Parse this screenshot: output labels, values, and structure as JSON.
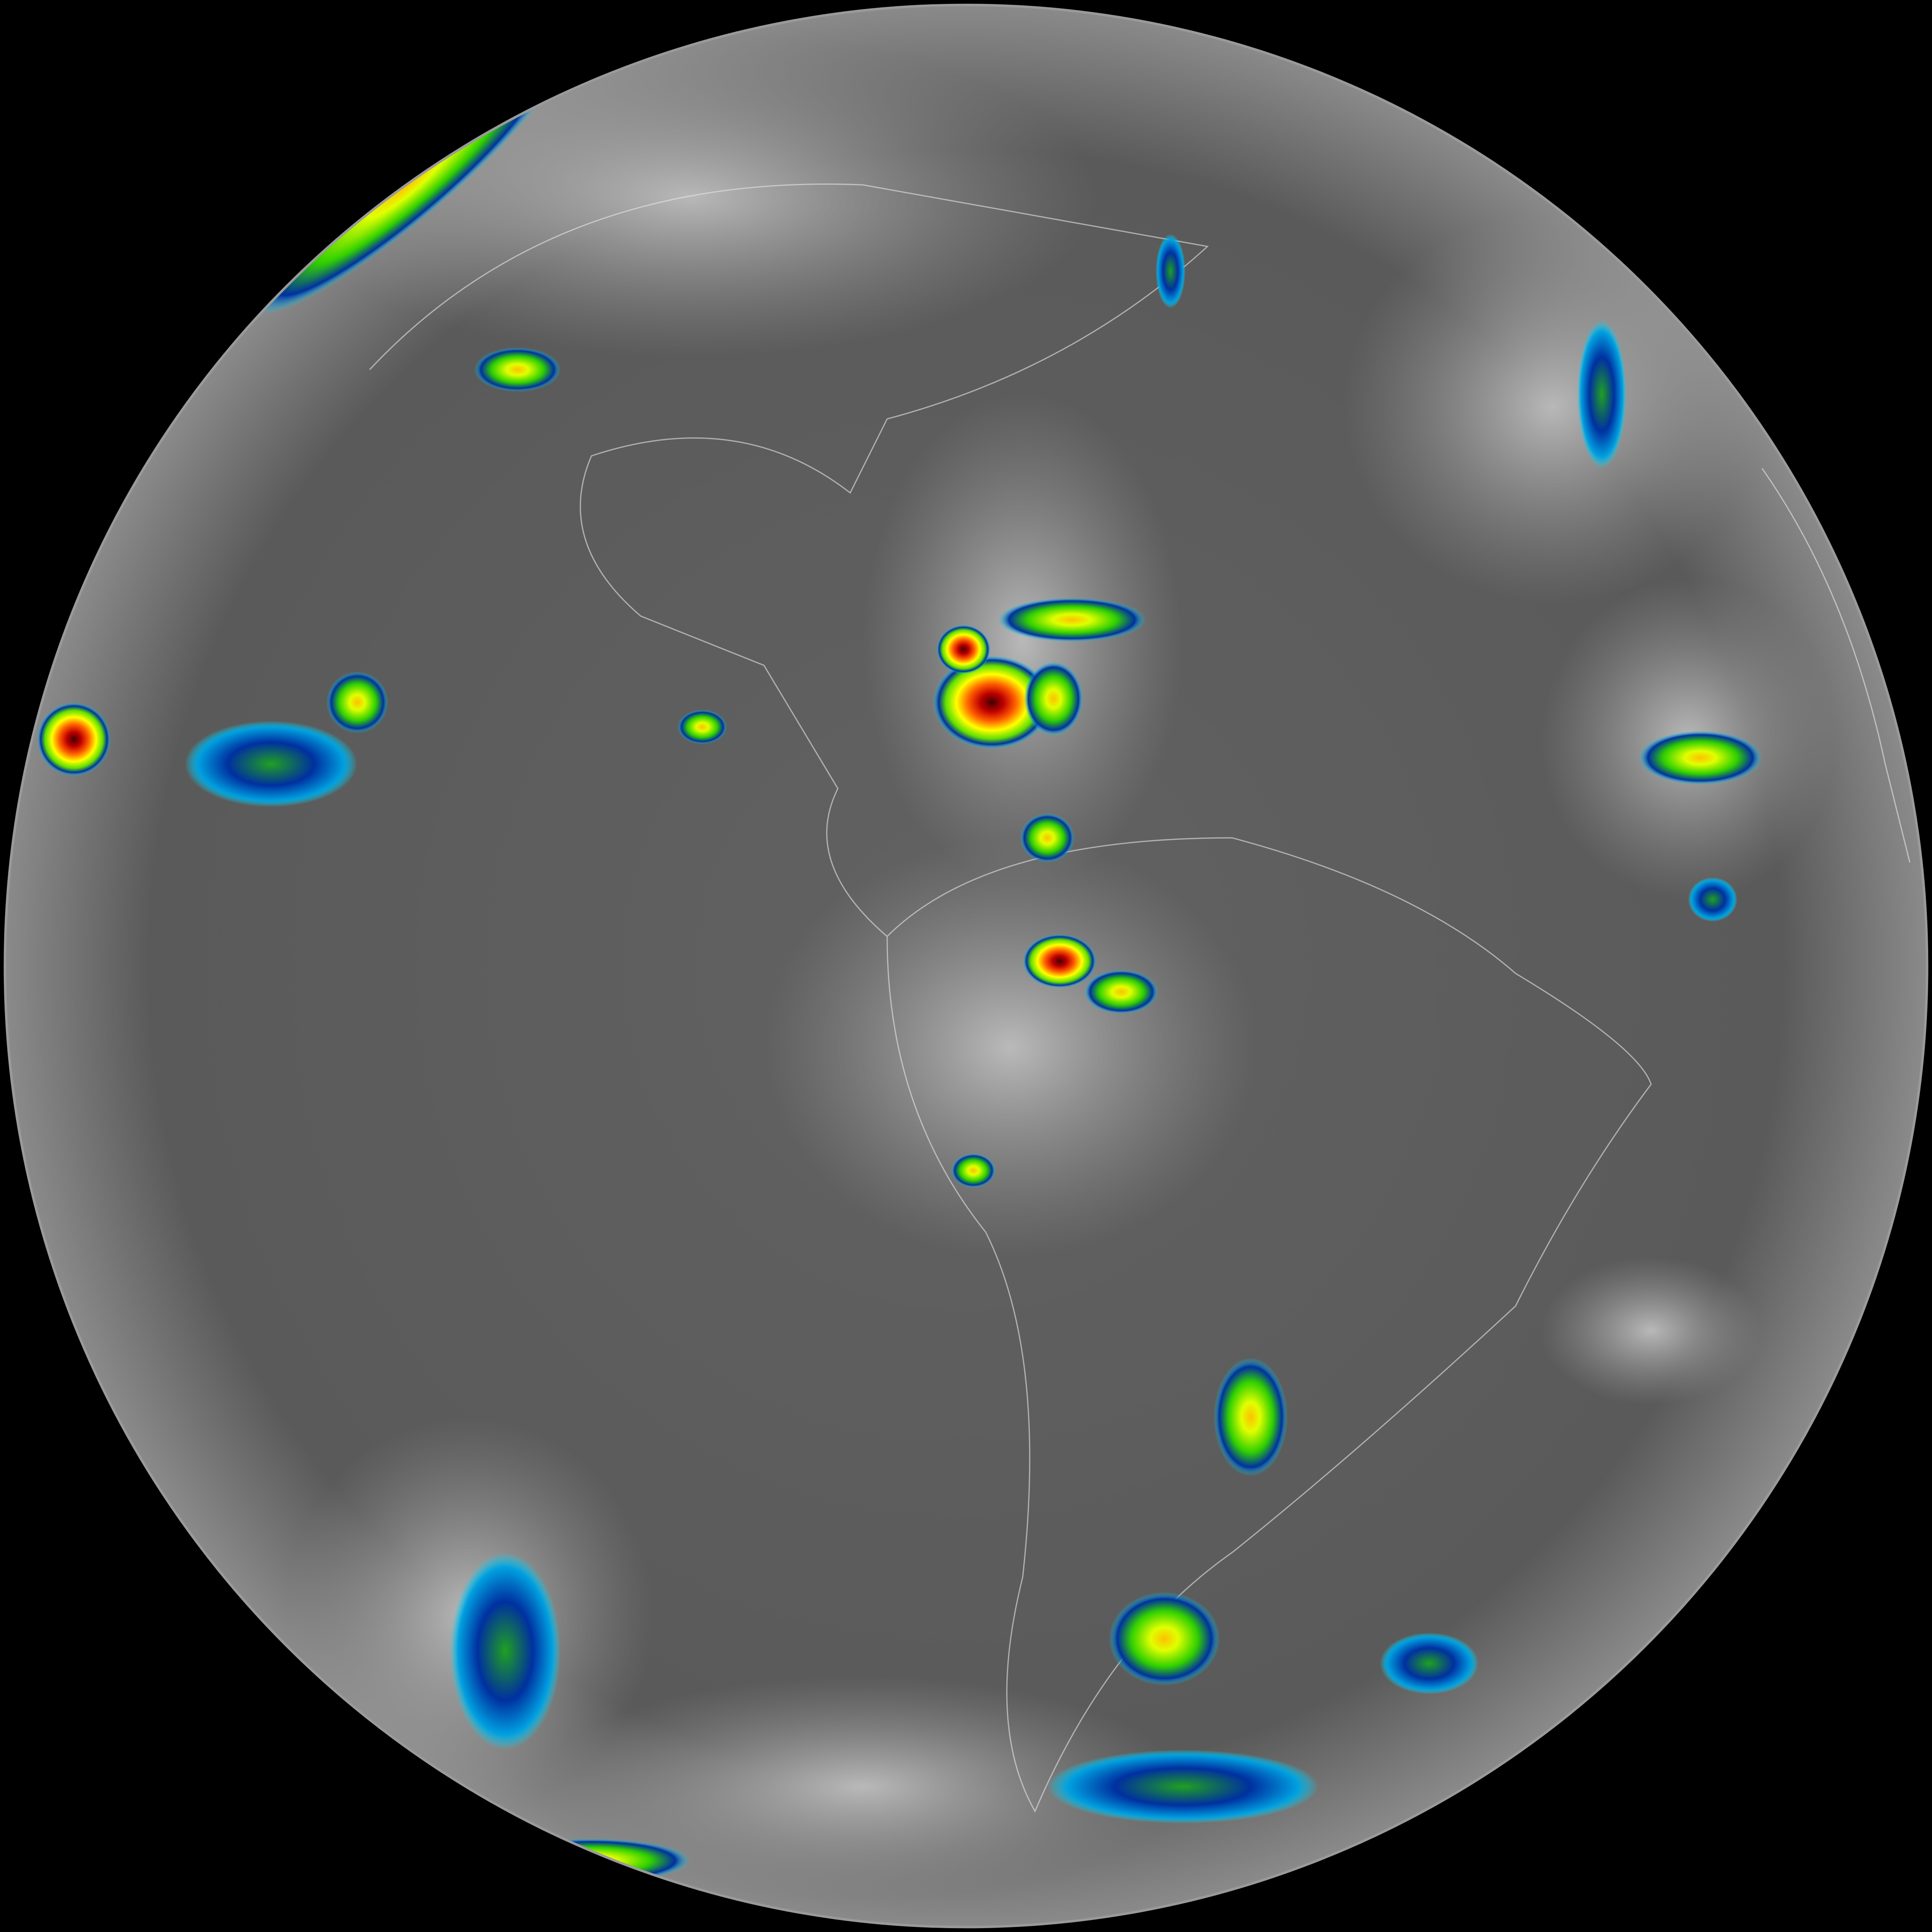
{
  "image": {
    "background_color": "#000000",
    "disk_base_color": "#5e5e5e",
    "cloud_color": "#c8c8c8",
    "border_line_color": "#e6e6e6",
    "colortable": [
      "#00e5ff",
      "#0032a0",
      "#00a000",
      "#b4ff00",
      "#ffff00",
      "#ff8000",
      "#e00000",
      "#600000"
    ]
  }
}
